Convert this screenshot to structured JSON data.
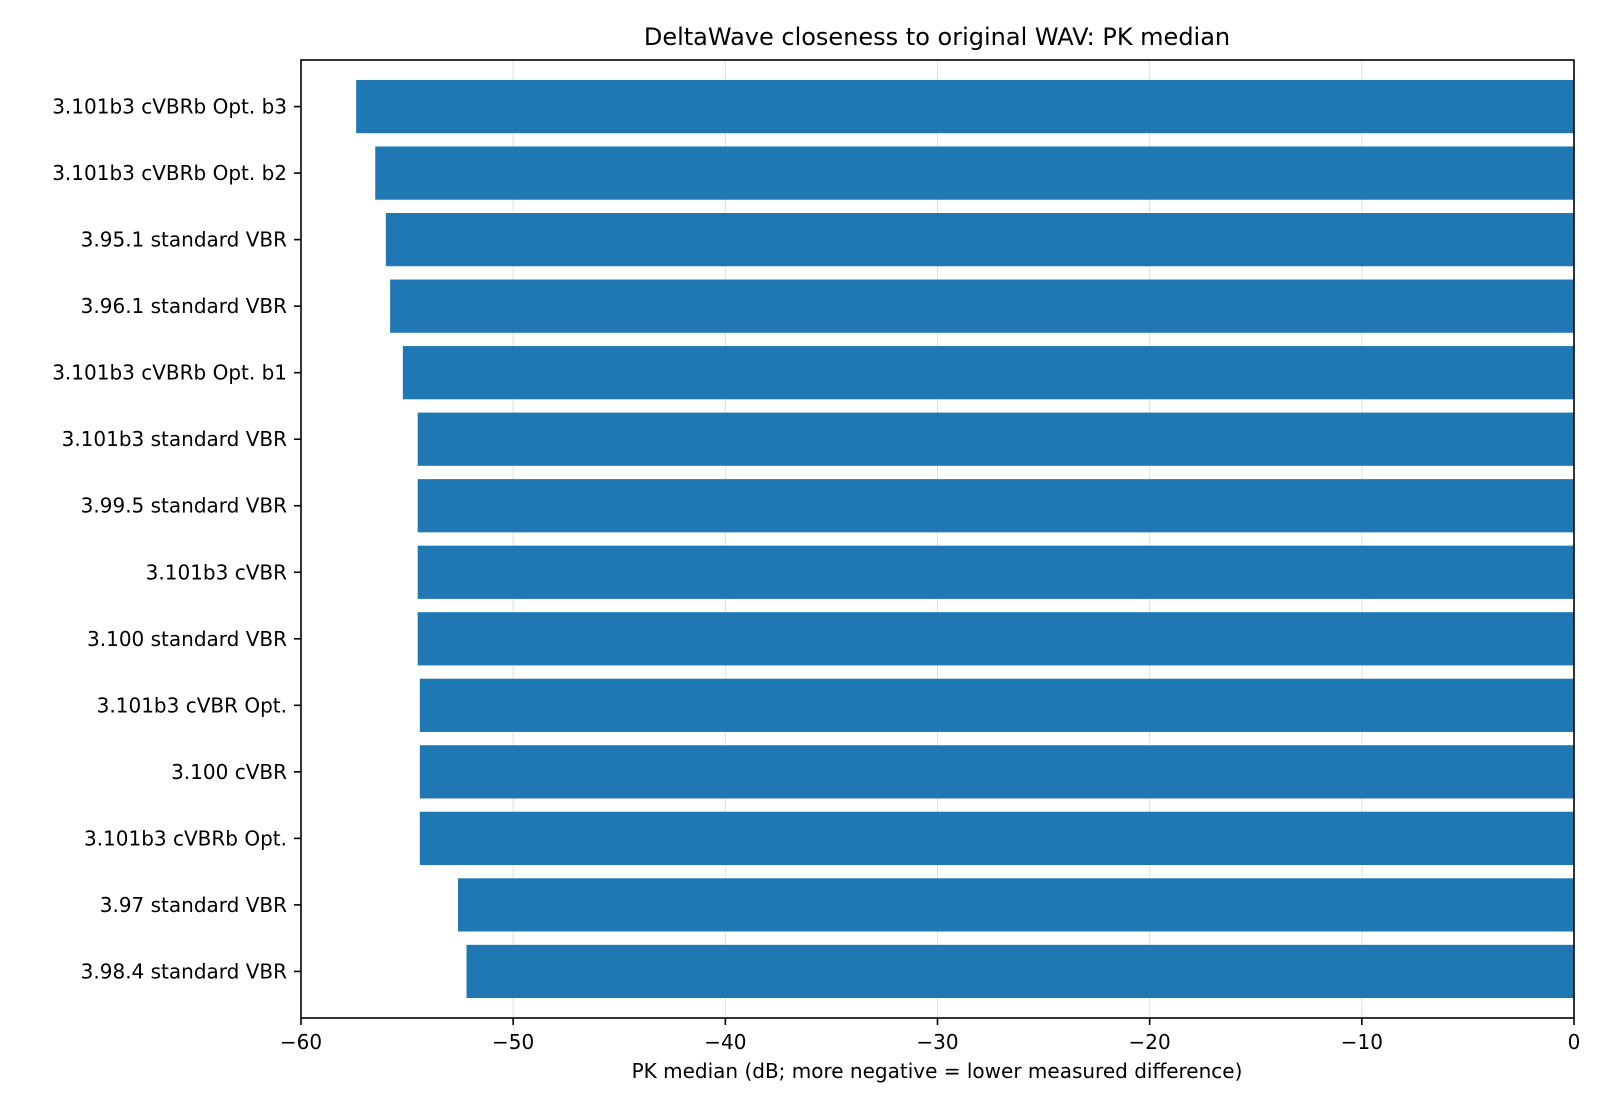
{
  "chart_data": {
    "type": "bar",
    "orientation": "horizontal",
    "title": "DeltaWave closeness to original WAV: PK median",
    "xlabel": "PK median (dB; more negative = lower measured difference)",
    "ylabel": "",
    "categories": [
      "3.101b3 cVBRb Opt. b3",
      "3.101b3 cVBRb Opt. b2",
      "3.95.1 standard VBR",
      "3.96.1 standard VBR",
      "3.101b3 cVBRb Opt. b1",
      "3.101b3 standard VBR",
      "3.99.5 standard VBR",
      "3.101b3 cVBR",
      "3.100 standard VBR",
      "3.101b3 cVBR Opt.",
      "3.100 cVBR",
      "3.101b3 cVBRb Opt.",
      "3.97 standard VBR",
      "3.98.4 standard VBR"
    ],
    "values": [
      -57.4,
      -56.5,
      -56.0,
      -55.8,
      -55.2,
      -54.5,
      -54.5,
      -54.5,
      -54.5,
      -54.4,
      -54.4,
      -54.4,
      -52.6,
      -52.2
    ],
    "xlim": [
      -60,
      0
    ],
    "xticks": [
      -60,
      -50,
      -40,
      -30,
      -20,
      -10,
      0
    ],
    "xtick_labels": [
      "−60",
      "−50",
      "−40",
      "−30",
      "−20",
      "−10",
      "0"
    ],
    "grid": "vertical",
    "bar_color": "#1f77b4"
  }
}
